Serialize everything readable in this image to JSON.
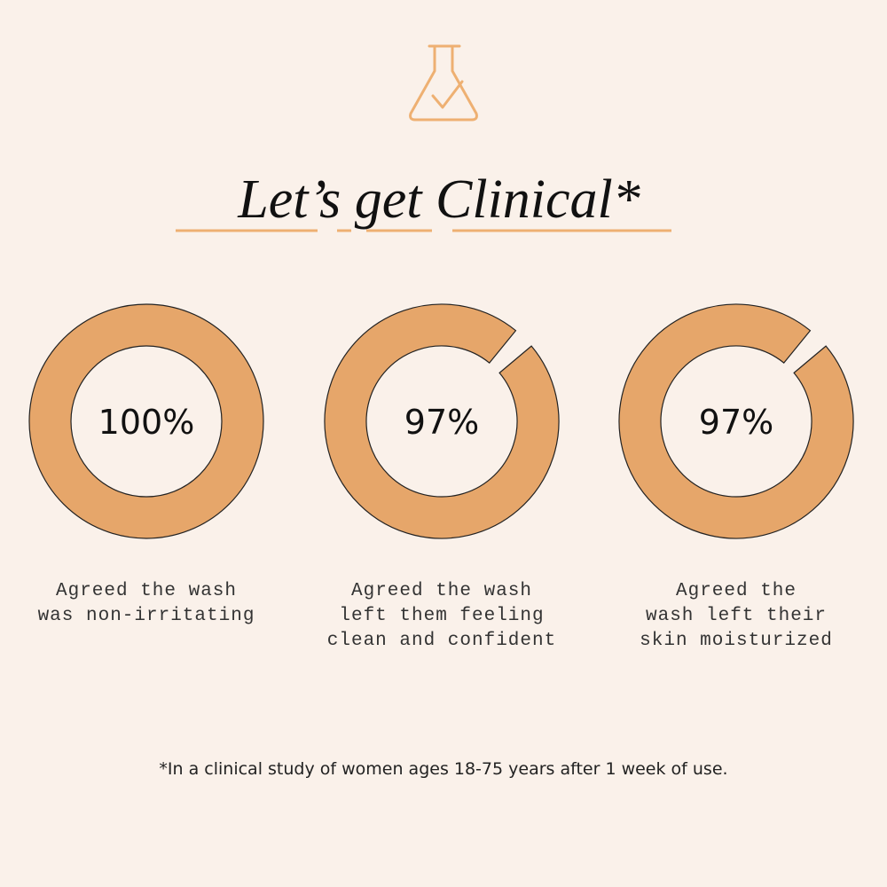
{
  "header": {
    "title": "Let’s get Clinical*"
  },
  "chart_data": [
    {
      "type": "donut",
      "values": [
        100
      ],
      "value_labels": [
        "100%"
      ],
      "color": "#e6a66a",
      "caption": [
        "Agreed the wash",
        "was non-irritating"
      ]
    },
    {
      "type": "donut",
      "values": [
        97
      ],
      "value_labels": [
        "97%"
      ],
      "color": "#e6a66a",
      "caption": [
        "Agreed the wash",
        "left them feeling",
        "clean and confident"
      ]
    },
    {
      "type": "donut",
      "values": [
        97
      ],
      "value_labels": [
        "97%"
      ],
      "color": "#e6a66a",
      "caption": [
        "Agreed the",
        "wash left their",
        "skin moisturized"
      ]
    }
  ],
  "footnote": "*In a clinical study of women ages 18-75 years after 1 week of use."
}
